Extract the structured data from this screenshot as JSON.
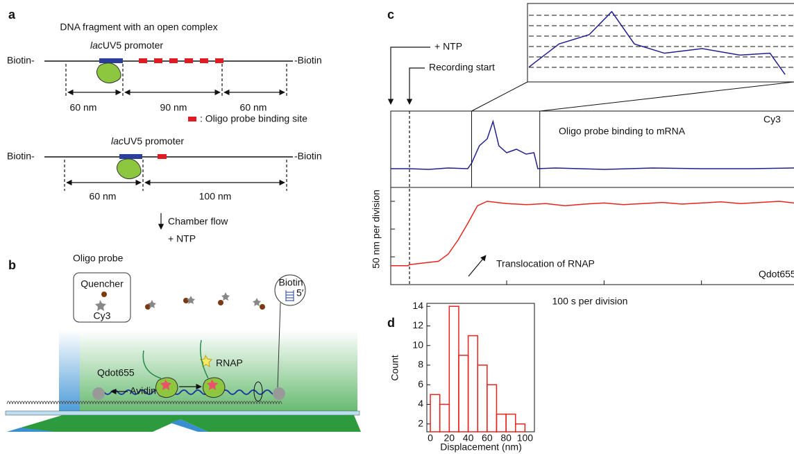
{
  "figure": {
    "a": {
      "label": "a",
      "title": "DNA fragment with an open complex",
      "top": {
        "biotin_left": "Biotin-",
        "promoter_lac": "lac",
        "promoter_rest": "UV5 promoter",
        "biotin_right": "-Biotin",
        "spans": [
          "60 nm",
          "90 nm",
          "60 nm"
        ]
      },
      "legend": ": Oligo probe binding site",
      "bottom": {
        "biotin_left": "Biotin-",
        "promoter_lac": "lac",
        "promoter_rest": "UV5 promoter",
        "biotin_right": "-Biotin",
        "spans": [
          "60 nm",
          "100 nm"
        ]
      },
      "step1": "Chamber flow",
      "step2": "+ NTP"
    },
    "b": {
      "label": "b",
      "probe_title": "Oligo probe",
      "quencher": "Quencher",
      "dye": "Cy3",
      "qdot": "Qdot655",
      "avidin": "Avidin",
      "rnap": "RNAP",
      "biotin": "Biotin",
      "five_prime": "5′"
    }
  },
  "chart_data": [
    {
      "type": "line",
      "label": "c",
      "annotations": {
        "ntp": "+ NTP",
        "start": "Recording start",
        "binding": "Oligo probe binding to mRNA",
        "translocation": "Translocation of RNAP"
      },
      "xlabel": "100 s per division",
      "ylabel": "50 nm per division",
      "xlim": [
        -19,
        395
      ],
      "xticks": [
        100,
        200,
        300
      ],
      "highlight": [
        64,
        134
      ],
      "series": [
        {
          "name": "Cy3",
          "color": "#1f1f8f",
          "x": [
            -19,
            -1,
            0,
            20,
            40,
            60,
            64,
            72,
            80,
            86,
            92,
            100,
            110,
            120,
            128,
            132,
            150,
            200,
            250,
            300,
            350,
            395
          ],
          "values": [
            27,
            27,
            27,
            26,
            28,
            27,
            35,
            60,
            70,
            95,
            60,
            50,
            55,
            48,
            50,
            27,
            28,
            26,
            28,
            27,
            27,
            28
          ],
          "ylim": [
            0,
            110
          ]
        },
        {
          "name": "Qdot655",
          "color": "#e8231f",
          "x": [
            -19,
            -1,
            0,
            10,
            20,
            30,
            40,
            50,
            60,
            70,
            80,
            100,
            120,
            140,
            160,
            180,
            200,
            220,
            240,
            260,
            280,
            300,
            320,
            340,
            360,
            380,
            395
          ],
          "values": [
            -16,
            -16,
            -14,
            -12,
            -10,
            -8,
            5,
            30,
            60,
            92,
            100,
            96,
            94,
            96,
            92,
            95,
            97,
            94,
            96,
            98,
            95,
            97,
            99,
            96,
            98,
            100,
            97
          ],
          "ylim": [
            -50,
            125
          ],
          "yticks": [
            0,
            50,
            100
          ]
        }
      ]
    },
    {
      "type": "histogram",
      "label": "d",
      "xlabel": "Displacement (nm)",
      "ylabel": "Count",
      "bins": [
        0,
        10,
        20,
        30,
        40,
        50,
        60,
        70,
        80,
        90,
        100
      ],
      "values": [
        5,
        4,
        14,
        9,
        11,
        8,
        6,
        3,
        3,
        2
      ],
      "color": "#e8231f",
      "xlim": [
        -3.7,
        110
      ],
      "ylim": [
        1.2,
        14.3
      ],
      "xticks": [
        0,
        20,
        40,
        60,
        80,
        100
      ],
      "yticks": [
        2,
        4,
        6,
        8,
        10,
        12,
        14
      ]
    }
  ]
}
